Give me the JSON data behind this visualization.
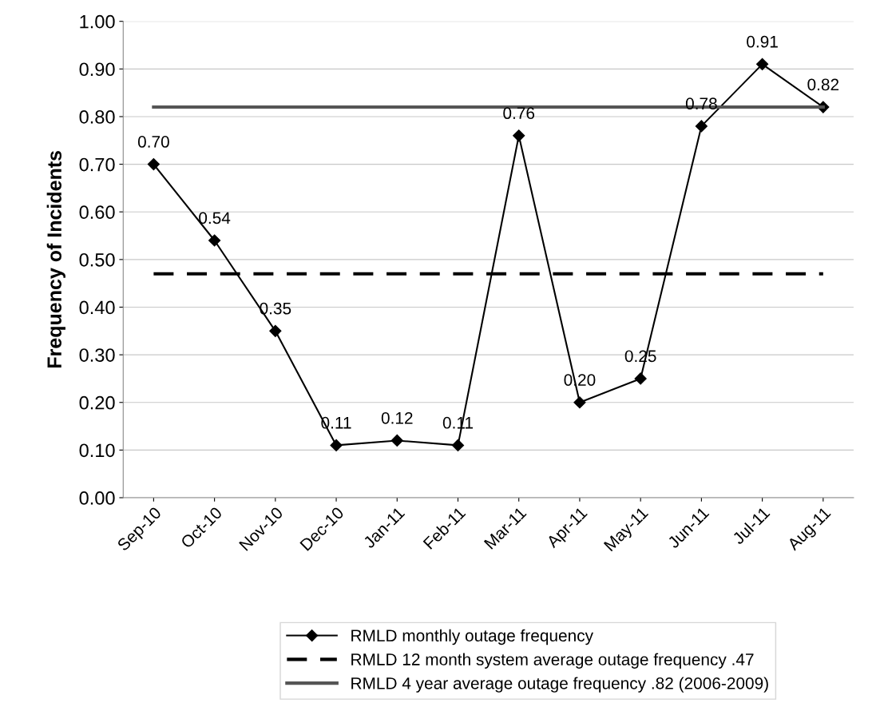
{
  "chart_data": {
    "type": "line",
    "ylabel": "Frequency of Incidents",
    "categories": [
      "Sep-10",
      "Oct-10",
      "Nov-10",
      "Dec-10",
      "Jan-11",
      "Feb-11",
      "Mar-11",
      "Apr-11",
      "May-11",
      "Jun-11",
      "Jul-11",
      "Aug-11"
    ],
    "series": [
      {
        "name": "RMLD monthly outage frequency",
        "color": "#000000",
        "marker": "diamond",
        "line_style": "solid",
        "value_labels": [
          "0.70",
          "0.54",
          "0.35",
          "0.11",
          "0.12",
          "0.11",
          "0.76",
          "0.20",
          "0.25",
          "0.78",
          "0.91",
          "0.82"
        ],
        "values": [
          0.7,
          0.54,
          0.35,
          0.11,
          0.12,
          0.11,
          0.76,
          0.2,
          0.25,
          0.78,
          0.91,
          0.82
        ]
      },
      {
        "name": "RMLD 12 month system average outage frequency .47",
        "color": "#000000",
        "marker": "none",
        "line_style": "dashed",
        "values": [
          0.47,
          0.47,
          0.47,
          0.47,
          0.47,
          0.47,
          0.47,
          0.47,
          0.47,
          0.47,
          0.47,
          0.47
        ]
      },
      {
        "name": "RMLD 4 year average outage frequency .82 (2006-2009)",
        "color": "#555555",
        "marker": "none",
        "line_style": "solid",
        "values": [
          0.82,
          0.82,
          0.82,
          0.82,
          0.82,
          0.82,
          0.82,
          0.82,
          0.82,
          0.82,
          0.82,
          0.82
        ]
      }
    ],
    "ylim": [
      0,
      1
    ],
    "yticks": [
      {
        "value": 0,
        "label": "0.00"
      },
      {
        "value": 0.1,
        "label": "0.10"
      },
      {
        "value": 0.2,
        "label": "0.20"
      },
      {
        "value": 0.3,
        "label": "0.30"
      },
      {
        "value": 0.4,
        "label": "0.40"
      },
      {
        "value": 0.5,
        "label": "0.50"
      },
      {
        "value": 0.6,
        "label": "0.60"
      },
      {
        "value": 0.7,
        "label": "0.70"
      },
      {
        "value": 0.8,
        "label": "0.80"
      },
      {
        "value": 0.9,
        "label": "0.90"
      },
      {
        "value": 1,
        "label": "1.00"
      }
    ],
    "grid": "y",
    "legend": "bottom"
  }
}
